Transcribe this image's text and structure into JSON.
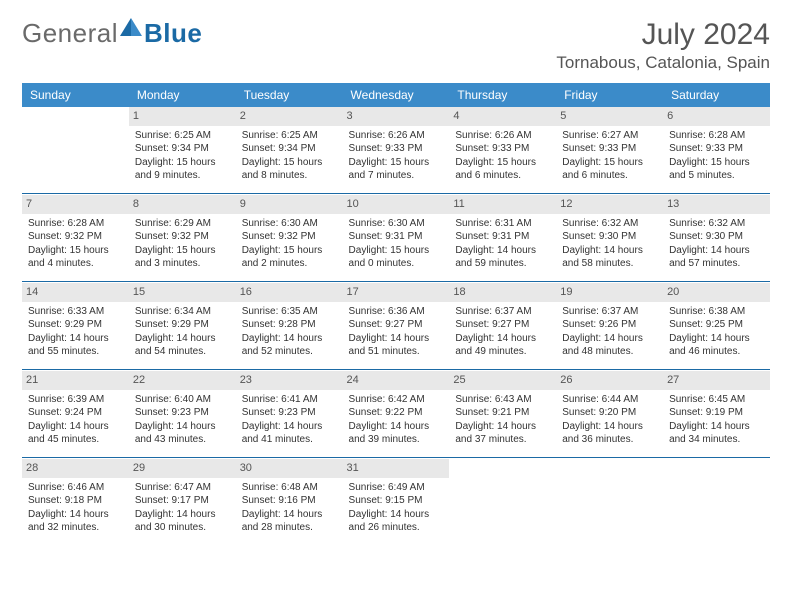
{
  "brand": {
    "general": "General",
    "blue": "Blue"
  },
  "title": "July 2024",
  "location": "Tornabous, Catalonia, Spain",
  "colors": {
    "header_bg": "#3b8bc9",
    "header_text": "#ffffff",
    "accent": "#1b6aa5",
    "daynum_bg": "#e8e8e8",
    "text": "#333333",
    "muted": "#555555"
  },
  "weekdays": [
    "Sunday",
    "Monday",
    "Tuesday",
    "Wednesday",
    "Thursday",
    "Friday",
    "Saturday"
  ],
  "weeks": [
    [
      null,
      {
        "n": "1",
        "sr": "6:25 AM",
        "ss": "9:34 PM",
        "dl": "15 hours and 9 minutes."
      },
      {
        "n": "2",
        "sr": "6:25 AM",
        "ss": "9:34 PM",
        "dl": "15 hours and 8 minutes."
      },
      {
        "n": "3",
        "sr": "6:26 AM",
        "ss": "9:33 PM",
        "dl": "15 hours and 7 minutes."
      },
      {
        "n": "4",
        "sr": "6:26 AM",
        "ss": "9:33 PM",
        "dl": "15 hours and 6 minutes."
      },
      {
        "n": "5",
        "sr": "6:27 AM",
        "ss": "9:33 PM",
        "dl": "15 hours and 6 minutes."
      },
      {
        "n": "6",
        "sr": "6:28 AM",
        "ss": "9:33 PM",
        "dl": "15 hours and 5 minutes."
      }
    ],
    [
      {
        "n": "7",
        "sr": "6:28 AM",
        "ss": "9:32 PM",
        "dl": "15 hours and 4 minutes."
      },
      {
        "n": "8",
        "sr": "6:29 AM",
        "ss": "9:32 PM",
        "dl": "15 hours and 3 minutes."
      },
      {
        "n": "9",
        "sr": "6:30 AM",
        "ss": "9:32 PM",
        "dl": "15 hours and 2 minutes."
      },
      {
        "n": "10",
        "sr": "6:30 AM",
        "ss": "9:31 PM",
        "dl": "15 hours and 0 minutes."
      },
      {
        "n": "11",
        "sr": "6:31 AM",
        "ss": "9:31 PM",
        "dl": "14 hours and 59 minutes."
      },
      {
        "n": "12",
        "sr": "6:32 AM",
        "ss": "9:30 PM",
        "dl": "14 hours and 58 minutes."
      },
      {
        "n": "13",
        "sr": "6:32 AM",
        "ss": "9:30 PM",
        "dl": "14 hours and 57 minutes."
      }
    ],
    [
      {
        "n": "14",
        "sr": "6:33 AM",
        "ss": "9:29 PM",
        "dl": "14 hours and 55 minutes."
      },
      {
        "n": "15",
        "sr": "6:34 AM",
        "ss": "9:29 PM",
        "dl": "14 hours and 54 minutes."
      },
      {
        "n": "16",
        "sr": "6:35 AM",
        "ss": "9:28 PM",
        "dl": "14 hours and 52 minutes."
      },
      {
        "n": "17",
        "sr": "6:36 AM",
        "ss": "9:27 PM",
        "dl": "14 hours and 51 minutes."
      },
      {
        "n": "18",
        "sr": "6:37 AM",
        "ss": "9:27 PM",
        "dl": "14 hours and 49 minutes."
      },
      {
        "n": "19",
        "sr": "6:37 AM",
        "ss": "9:26 PM",
        "dl": "14 hours and 48 minutes."
      },
      {
        "n": "20",
        "sr": "6:38 AM",
        "ss": "9:25 PM",
        "dl": "14 hours and 46 minutes."
      }
    ],
    [
      {
        "n": "21",
        "sr": "6:39 AM",
        "ss": "9:24 PM",
        "dl": "14 hours and 45 minutes."
      },
      {
        "n": "22",
        "sr": "6:40 AM",
        "ss": "9:23 PM",
        "dl": "14 hours and 43 minutes."
      },
      {
        "n": "23",
        "sr": "6:41 AM",
        "ss": "9:23 PM",
        "dl": "14 hours and 41 minutes."
      },
      {
        "n": "24",
        "sr": "6:42 AM",
        "ss": "9:22 PM",
        "dl": "14 hours and 39 minutes."
      },
      {
        "n": "25",
        "sr": "6:43 AM",
        "ss": "9:21 PM",
        "dl": "14 hours and 37 minutes."
      },
      {
        "n": "26",
        "sr": "6:44 AM",
        "ss": "9:20 PM",
        "dl": "14 hours and 36 minutes."
      },
      {
        "n": "27",
        "sr": "6:45 AM",
        "ss": "9:19 PM",
        "dl": "14 hours and 34 minutes."
      }
    ],
    [
      {
        "n": "28",
        "sr": "6:46 AM",
        "ss": "9:18 PM",
        "dl": "14 hours and 32 minutes."
      },
      {
        "n": "29",
        "sr": "6:47 AM",
        "ss": "9:17 PM",
        "dl": "14 hours and 30 minutes."
      },
      {
        "n": "30",
        "sr": "6:48 AM",
        "ss": "9:16 PM",
        "dl": "14 hours and 28 minutes."
      },
      {
        "n": "31",
        "sr": "6:49 AM",
        "ss": "9:15 PM",
        "dl": "14 hours and 26 minutes."
      },
      null,
      null,
      null
    ]
  ],
  "labels": {
    "sunrise": "Sunrise:",
    "sunset": "Sunset:",
    "daylight": "Daylight:"
  }
}
